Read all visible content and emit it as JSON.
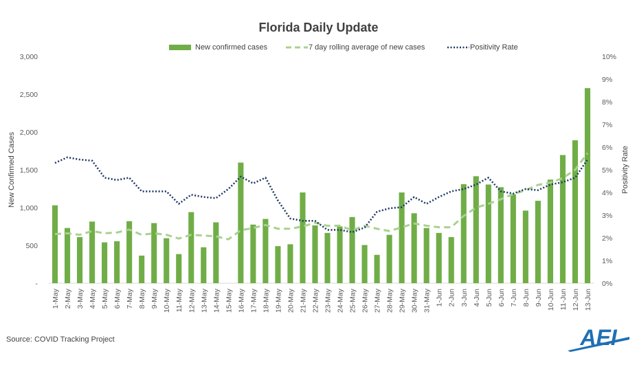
{
  "source": "Source: COVID Tracking Project",
  "logo_text": "AEI",
  "colors": {
    "bars": "#70ad47",
    "rolling": "#a9d18e",
    "positivity": "#1f3864",
    "axis": "#d9d9d9",
    "text": "#404040"
  },
  "chart_data": {
    "type": "bar",
    "title": "Florida Daily Update",
    "ylabel": "New Confirmed Cases",
    "y2label": "Positivity Rate",
    "ylim": [
      0,
      3000
    ],
    "y2lim": [
      0,
      10
    ],
    "yticks": [
      "-",
      "500",
      "1,000",
      "1,500",
      "2,000",
      "2,500",
      "3,000"
    ],
    "y2ticks": [
      "0%",
      "1%",
      "2%",
      "3%",
      "4%",
      "5%",
      "6%",
      "7%",
      "8%",
      "9%",
      "10%"
    ],
    "categories": [
      "1-May",
      "2-May",
      "3-May",
      "4-May",
      "5-May",
      "6-May",
      "7-May",
      "8-May",
      "9-May",
      "10-May",
      "11-May",
      "12-May",
      "13-May",
      "14-May",
      "15-May",
      "16-May",
      "17-May",
      "18-May",
      "19-May",
      "20-May",
      "21-May",
      "22-May",
      "23-May",
      "24-May",
      "25-May",
      "26-May",
      "27-May",
      "28-May",
      "29-May",
      "30-May",
      "31-May",
      "1-Jun",
      "2-Jun",
      "3-Jun",
      "4-Jun",
      "5-Jun",
      "6-Jun",
      "7-Jun",
      "8-Jun",
      "9-Jun",
      "10-Jun",
      "11-Jun",
      "12-Jun",
      "13-Jun"
    ],
    "series": [
      {
        "name": "New confirmed cases",
        "kind": "bar",
        "axis": "left",
        "values": [
          1030,
          730,
          610,
          815,
          540,
          555,
          820,
          365,
          795,
          595,
          385,
          940,
          475,
          805,
          0,
          1595,
          775,
          850,
          490,
          515,
          1200,
          765,
          665,
          750,
          875,
          505,
          375,
          640,
          1200,
          925,
          730,
          665,
          610,
          1310,
          1415,
          1305,
          1270,
          1175,
          960,
          1090,
          1370,
          1695,
          1890,
          2580
        ]
      },
      {
        "name": "7 day rolling average of new cases",
        "kind": "line",
        "style": "dashed",
        "axis": "left",
        "values": [
          650,
          660,
          640,
          690,
          660,
          670,
          710,
          640,
          660,
          640,
          590,
          640,
          630,
          620,
          580,
          700,
          730,
          770,
          720,
          720,
          750,
          800,
          760,
          760,
          700,
          760,
          720,
          690,
          740,
          790,
          760,
          740,
          740,
          890,
          1000,
          1050,
          1110,
          1180,
          1230,
          1300,
          1330,
          1390,
          1500,
          1720
        ]
      },
      {
        "name": "Positivity Rate",
        "kind": "line",
        "style": "dotted",
        "axis": "right",
        "values": [
          5.3,
          5.55,
          5.45,
          5.4,
          4.65,
          4.55,
          4.65,
          4.05,
          4.05,
          4.05,
          3.5,
          3.9,
          3.8,
          3.75,
          4.15,
          4.7,
          4.4,
          4.65,
          3.65,
          2.85,
          2.75,
          2.75,
          2.35,
          2.35,
          2.25,
          2.45,
          3.15,
          3.3,
          3.35,
          3.8,
          3.5,
          3.8,
          4.05,
          4.15,
          4.35,
          4.65,
          4.05,
          3.95,
          4.15,
          4.1,
          4.35,
          4.45,
          4.65,
          5.45
        ]
      }
    ],
    "legend": "top"
  }
}
